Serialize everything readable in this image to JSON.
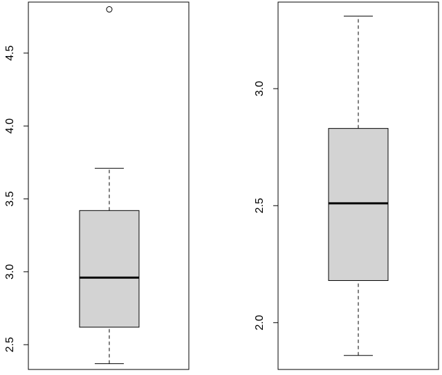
{
  "chart_data": [
    {
      "type": "boxplot",
      "yticks": [
        2.5,
        3.0,
        3.5,
        4.0,
        4.5
      ],
      "ytick_labels": [
        "2.5",
        "3.0",
        "3.5",
        "4.0",
        "4.5"
      ],
      "ylim": [
        2.33,
        4.85
      ],
      "box": {
        "whisker_low": 2.37,
        "q1": 2.62,
        "median": 2.96,
        "q3": 3.42,
        "whisker_high": 3.71
      },
      "outliers": [
        4.8
      ],
      "box_fill": "#d3d3d3"
    },
    {
      "type": "boxplot",
      "yticks": [
        2.0,
        2.5,
        3.0
      ],
      "ytick_labels": [
        "2.0",
        "2.5",
        "3.0"
      ],
      "ylim": [
        1.8,
        3.37
      ],
      "box": {
        "whisker_low": 1.86,
        "q1": 2.18,
        "median": 2.51,
        "q3": 2.83,
        "whisker_high": 3.31
      },
      "outliers": [],
      "box_fill": "#d3d3d3"
    }
  ]
}
